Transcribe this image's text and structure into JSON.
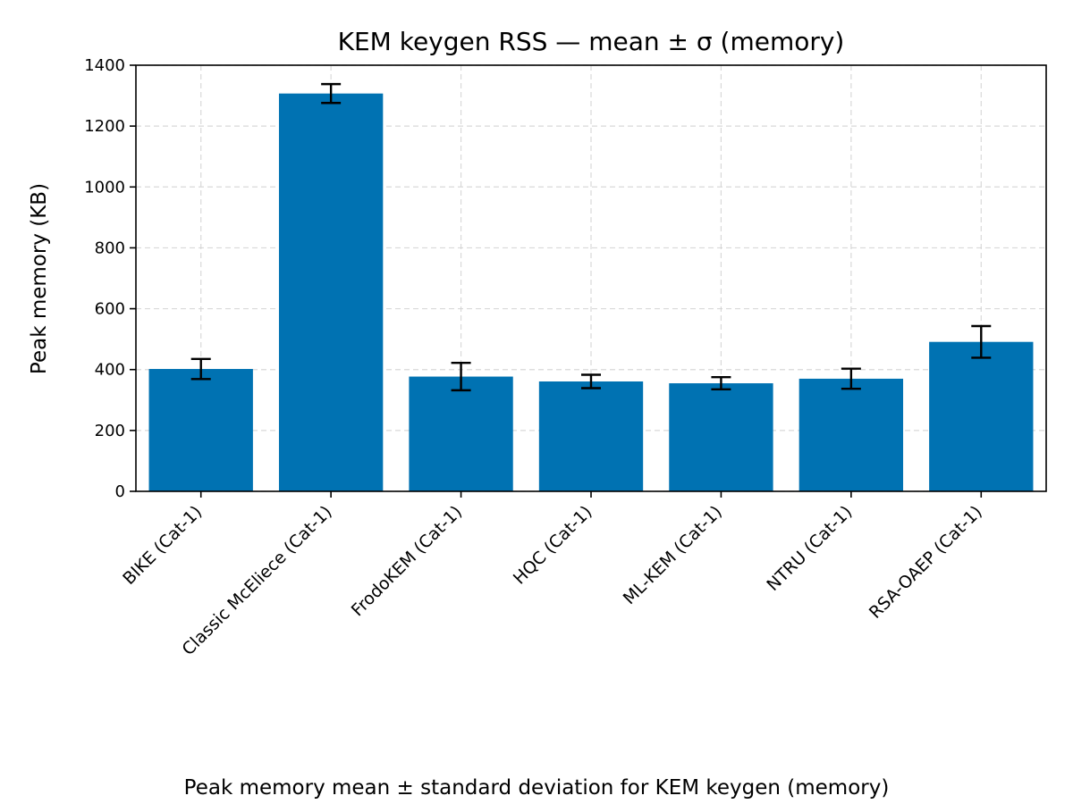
{
  "chart_data": {
    "type": "bar",
    "title": "KEM keygen RSS — mean ± σ (memory)",
    "ylabel": "Peak memory (KB)",
    "xlabel": "",
    "caption": "Peak memory mean ± standard deviation for KEM keygen (memory)",
    "categories": [
      "BIKE (Cat-1)",
      "Classic McEliece (Cat-1)",
      "FrodoKEM (Cat-1)",
      "HQC (Cat-1)",
      "ML-KEM (Cat-1)",
      "NTRU (Cat-1)",
      "RSA-OAEP (Cat-1)"
    ],
    "values": [
      402,
      1307,
      377,
      361,
      355,
      370,
      491
    ],
    "errors": [
      33,
      31,
      45,
      22,
      20,
      33,
      52
    ],
    "ylim": [
      0,
      1400
    ],
    "yticks": [
      0,
      200,
      400,
      600,
      800,
      1000,
      1200,
      1400
    ],
    "grid": true,
    "bar_color": "#0072b2",
    "error_color": "#000000"
  }
}
